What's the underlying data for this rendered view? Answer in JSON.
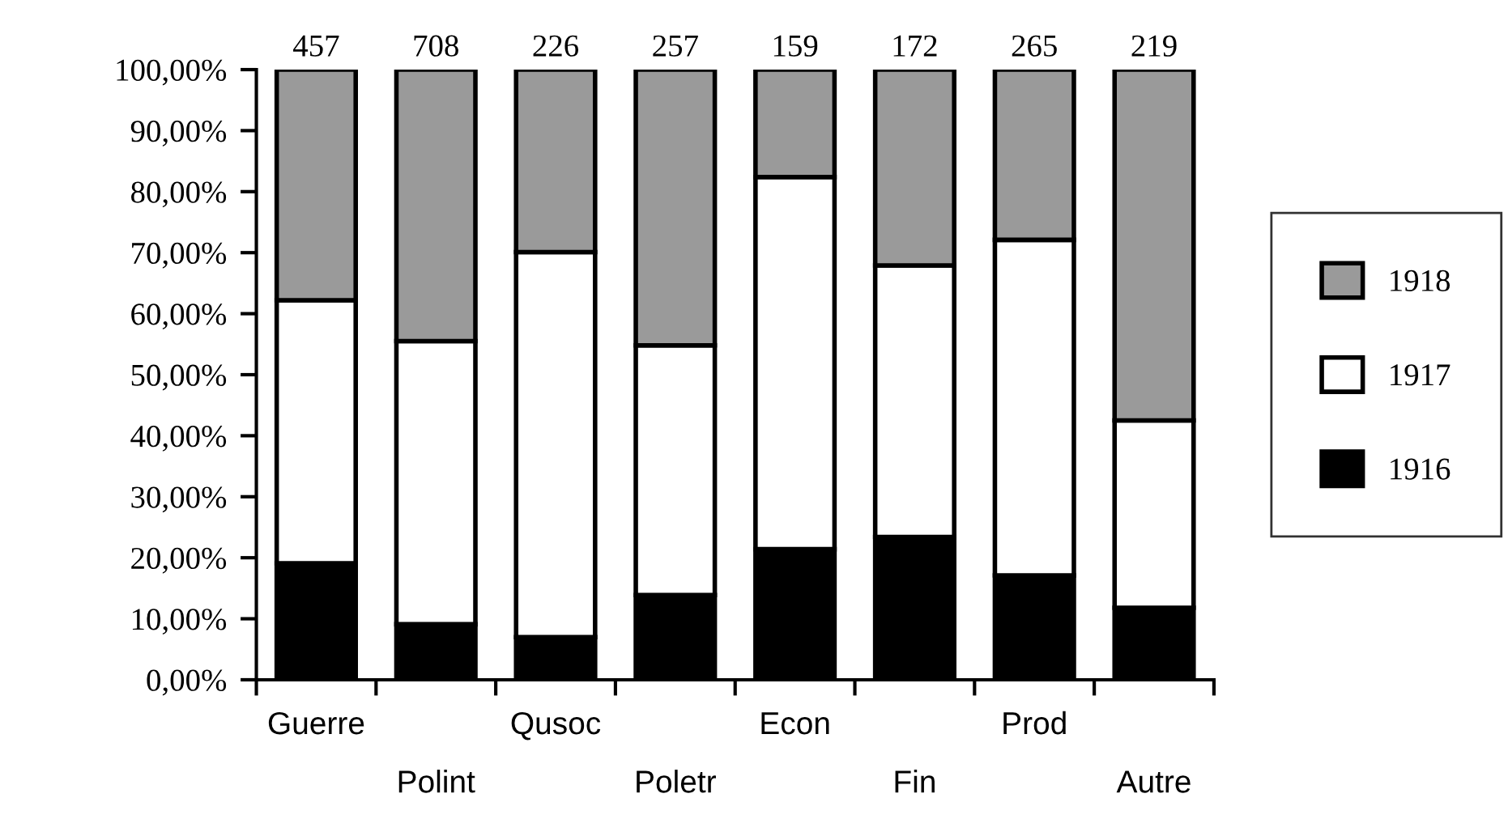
{
  "chart_data": {
    "type": "bar",
    "stacked": true,
    "categories": [
      "Guerre",
      "Polint",
      "Qusoc",
      "Poletr",
      "Econ",
      "Fin",
      "Prod",
      "Autre"
    ],
    "series": [
      {
        "name": "1916",
        "color": "#000000",
        "values": [
          19.1,
          9.1,
          7.0,
          13.9,
          21.4,
          23.4,
          17.1,
          11.8
        ]
      },
      {
        "name": "1917",
        "color": "#ffffff",
        "values": [
          43.1,
          46.4,
          63.1,
          40.9,
          61.0,
          44.5,
          55.0,
          30.7
        ]
      },
      {
        "name": "1918",
        "color": "#9a9a9a",
        "values": [
          37.8,
          44.5,
          29.9,
          45.2,
          17.6,
          32.1,
          27.9,
          57.5
        ]
      }
    ],
    "annotations": [
      {
        "text": "457",
        "x": "Guerre",
        "y": 100
      },
      {
        "text": "708",
        "x": "Polint",
        "y": 100
      },
      {
        "text": "226",
        "x": "Qusoc",
        "y": 100
      },
      {
        "text": "257",
        "x": "Poletr",
        "y": 100
      },
      {
        "text": "159",
        "x": "Econ",
        "y": 100
      },
      {
        "text": "172",
        "x": "Fin",
        "y": 100
      },
      {
        "text": "265",
        "x": "Prod",
        "y": 100
      },
      {
        "text": "219",
        "x": "Autre",
        "y": 100
      }
    ],
    "ylim": [
      0,
      100
    ],
    "yticks": [
      {
        "value": 0,
        "label": "0,00%"
      },
      {
        "value": 10,
        "label": "10,00%"
      },
      {
        "value": 20,
        "label": "20,00%"
      },
      {
        "value": 30,
        "label": "30,00%"
      },
      {
        "value": 40,
        "label": "40,00%"
      },
      {
        "value": 50,
        "label": "50,00%"
      },
      {
        "value": 60,
        "label": "60,00%"
      },
      {
        "value": 70,
        "label": "70,00%"
      },
      {
        "value": 80,
        "label": "80,00%"
      },
      {
        "value": 90,
        "label": "90,00%"
      },
      {
        "value": 100,
        "label": "100,00%"
      }
    ],
    "grid": false,
    "legend": "right"
  }
}
